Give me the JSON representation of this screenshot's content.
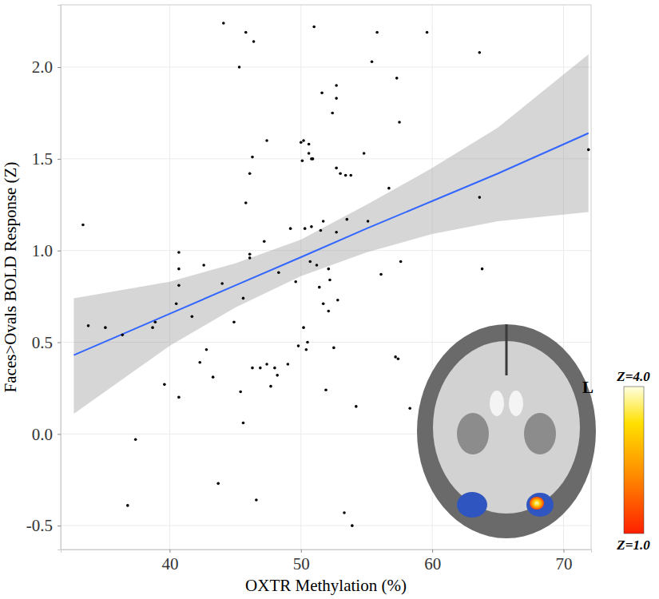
{
  "chart_data": {
    "type": "scatter",
    "x_label": "OXTR Methylation (%)",
    "y_label": "Faces>Ovals BOLD Response (Z)",
    "xlim": [
      31.7,
      72.1
    ],
    "ylim": [
      -0.63,
      2.34
    ],
    "xticks": [
      40,
      50,
      60,
      70
    ],
    "yticks": [
      {
        "value": -0.5,
        "label": "-0.5"
      },
      {
        "value": 0,
        "label": "0.0"
      },
      0.5,
      {
        "value": 1,
        "label": "1.0"
      },
      1.5,
      {
        "value": 2,
        "label": "2.0"
      }
    ],
    "grid": true,
    "series": [
      {
        "type": "scatter",
        "color": "#000000",
        "marker": "circle",
        "x": [
          33.4,
          33.8,
          35.1,
          36.4,
          36.8,
          37.4,
          38.7,
          38.9,
          39.6,
          40.5,
          40.7,
          40.7,
          40.7,
          40.7,
          41.7,
          42.3,
          42.6,
          42.8,
          43.3,
          43.7,
          44.0,
          44.1,
          44.9,
          45.3,
          45.4,
          45.6,
          45.6,
          45.8,
          45.8,
          46.1,
          46.1,
          46.1,
          46.3,
          46.3,
          46.4,
          46.6,
          46.9,
          47.2,
          47.4,
          47.4,
          47.7,
          48.0,
          48.2,
          48.3,
          49.0,
          49.2,
          49.6,
          49.8,
          50.0,
          50.1,
          50.2,
          50.2,
          50.3,
          50.4,
          50.5,
          50.6,
          50.6,
          50.7,
          50.8,
          50.8,
          50.9,
          51.0,
          51.2,
          51.4,
          51.5,
          51.7,
          51.6,
          51.7,
          51.9,
          52.1,
          52.1,
          52.2,
          52.4,
          52.5,
          52.7,
          52.7,
          52.7,
          52.7,
          52.8,
          53.0,
          53.3,
          53.4,
          53.5,
          53.8,
          53.9,
          54.2,
          54.8,
          55.1,
          55.4,
          55.8,
          56.1,
          56.7,
          57.2,
          57.3,
          57.4,
          57.5,
          57.6,
          58.3,
          59.6,
          63.6,
          63.6,
          63.8,
          71.9
        ],
        "values": [
          1.14,
          0.59,
          0.58,
          0.54,
          -0.39,
          -0.03,
          0.58,
          0.61,
          0.27,
          0.71,
          0.99,
          0.9,
          0.81,
          0.2,
          0.64,
          0.39,
          0.92,
          0.46,
          0.31,
          -0.27,
          0.82,
          2.24,
          0.61,
          2.0,
          0.23,
          0.06,
          0.74,
          2.19,
          1.26,
          0.98,
          0.96,
          1.42,
          1.51,
          0.36,
          2.14,
          -0.36,
          0.36,
          1.05,
          1.6,
          0.38,
          0.26,
          0.36,
          0.32,
          0.88,
          0.38,
          1.12,
          0.83,
          0.48,
          1.59,
          1.49,
          1.6,
          0.58,
          1.12,
          0.46,
          0.5,
          1.53,
          1.58,
          0.94,
          1.5,
          1.13,
          1.5,
          2.22,
          0.92,
          0.8,
          1.11,
          0.71,
          1.86,
          1.16,
          0.24,
          0.9,
          0.67,
          0.84,
          1.75,
          0.47,
          1.1,
          1.83,
          1.9,
          1.45,
          0.73,
          1.42,
          -0.43,
          1.41,
          1.17,
          1.41,
          -0.5,
          0.15,
          1.53,
          1.16,
          2.03,
          2.19,
          0.87,
          1.34,
          0.42,
          1.94,
          0.41,
          1.7,
          0.94,
          0.14,
          2.19,
          2.08,
          1.29,
          0.9,
          1.55
        ]
      },
      {
        "type": "line",
        "color": "#3366ff",
        "line_style": "solid",
        "x": [
          32.7,
          40,
          45,
          50,
          55,
          60,
          65,
          71.9
        ],
        "values": [
          0.43,
          0.655,
          0.81,
          0.964,
          1.12,
          1.27,
          1.42,
          1.64
        ],
        "lower": [
          0.11,
          0.48,
          0.69,
          0.86,
          0.99,
          1.09,
          1.16,
          1.21
        ],
        "upper": [
          0.74,
          0.83,
          0.93,
          1.06,
          1.25,
          1.45,
          1.67,
          2.07
        ]
      }
    ],
    "annotations": [
      "L"
    ],
    "colorbar": {
      "range": [
        1,
        4
      ],
      "ticks": [
        {
          "value": 1,
          "label": "Z=1.0"
        },
        {
          "value": 4,
          "label": "Z=4.0"
        }
      ]
    }
  }
}
